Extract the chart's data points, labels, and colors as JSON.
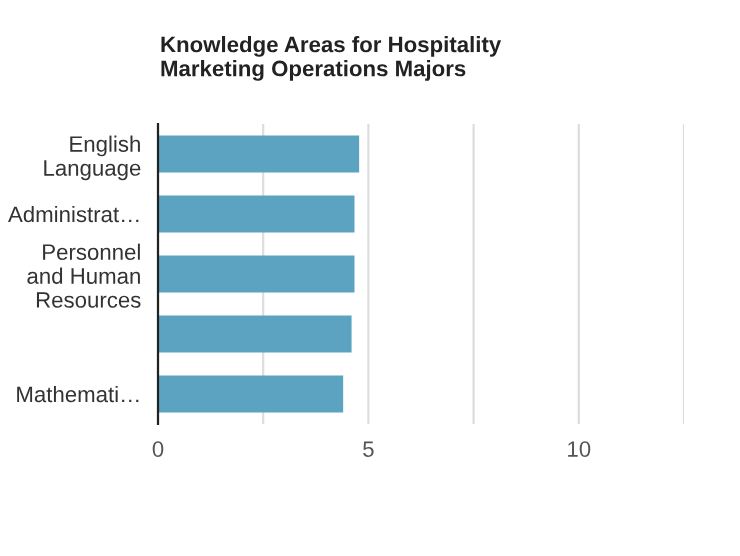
{
  "chart_data": {
    "type": "bar",
    "orientation": "horizontal",
    "title": "Knowledge Areas for Hospitality\nMarketing Operations Majors",
    "categories": [
      "English\nLanguage",
      "Administrat…",
      "Personnel\nand Human\nResources",
      null,
      "Mathemati…"
    ],
    "values": [
      4.78,
      4.67,
      4.67,
      4.6,
      4.4
    ],
    "color": "#5ba3c0",
    "xlim": [
      0,
      12.5
    ],
    "xticks": [
      0,
      {
        "value": 2.5,
        "label": null
      },
      5,
      {
        "value": 7.5,
        "label": null
      },
      10,
      {
        "value": 12.5,
        "label": null
      }
    ],
    "grid": "x"
  }
}
